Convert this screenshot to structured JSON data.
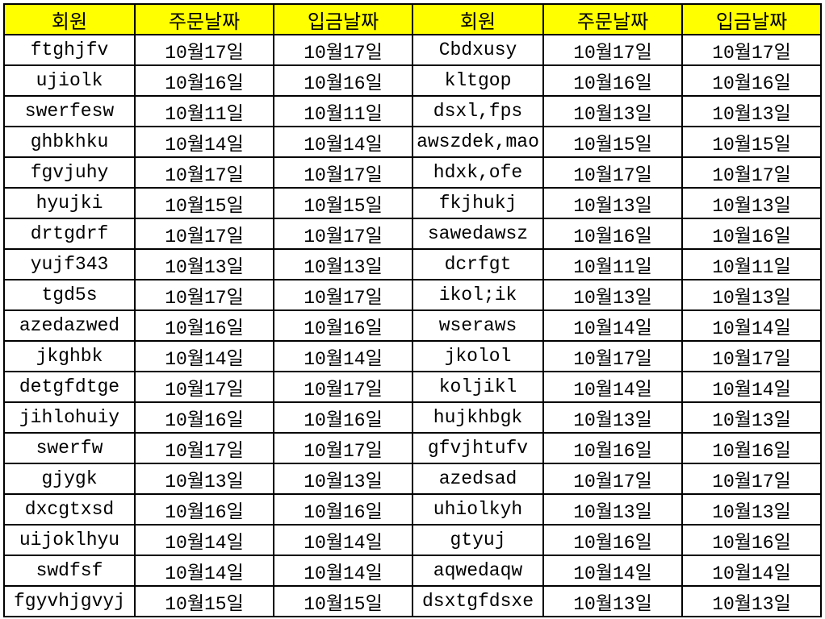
{
  "sheet": {
    "header_color": "#ffff00",
    "headers": [
      "회원",
      "주문날짜",
      "입금날짜",
      "회원",
      "주문날짜",
      "입금날짜"
    ],
    "rows": [
      [
        "ftghjfv",
        "10월17일",
        "10월17일",
        "Cbdxusy",
        "10월17일",
        "10월17일"
      ],
      [
        "ujiolk",
        "10월16일",
        "10월16일",
        "kltgop",
        "10월16일",
        "10월16일"
      ],
      [
        "swerfesw",
        "10월11일",
        "10월11일",
        "dsxl,fps",
        "10월13일",
        "10월13일"
      ],
      [
        "ghbkhku",
        "10월14일",
        "10월14일",
        "awszdek,mao",
        "10월15일",
        "10월15일"
      ],
      [
        "fgvjuhy",
        "10월17일",
        "10월17일",
        "hdxk,ofe",
        "10월17일",
        "10월17일"
      ],
      [
        "hyujki",
        "10월15일",
        "10월15일",
        "fkjhukj",
        "10월13일",
        "10월13일"
      ],
      [
        "drtgdrf",
        "10월17일",
        "10월17일",
        "sawedawsz",
        "10월16일",
        "10월16일"
      ],
      [
        "yujf343",
        "10월13일",
        "10월13일",
        "dcrfgt",
        "10월11일",
        "10월11일"
      ],
      [
        "tgd5s",
        "10월17일",
        "10월17일",
        "ikol;ik",
        "10월13일",
        "10월13일"
      ],
      [
        "azedazwed",
        "10월16일",
        "10월16일",
        "wseraws",
        "10월14일",
        "10월14일"
      ],
      [
        "jkghbk",
        "10월14일",
        "10월14일",
        "jkolol",
        "10월17일",
        "10월17일"
      ],
      [
        "detgfdtge",
        "10월17일",
        "10월17일",
        "koljikl",
        "10월14일",
        "10월14일"
      ],
      [
        "jihlohuiy",
        "10월16일",
        "10월16일",
        "hujkhbgk",
        "10월13일",
        "10월13일"
      ],
      [
        "swerfw",
        "10월17일",
        "10월17일",
        "gfvjhtufv",
        "10월16일",
        "10월16일"
      ],
      [
        "gjygk",
        "10월13일",
        "10월13일",
        "azedsad",
        "10월17일",
        "10월17일"
      ],
      [
        "dxcgtxsd",
        "10월16일",
        "10월16일",
        "uhiolkyh",
        "10월13일",
        "10월13일"
      ],
      [
        "uijoklhyu",
        "10월14일",
        "10월14일",
        "gtyuj",
        "10월16일",
        "10월16일"
      ],
      [
        "swdfsf",
        "10월14일",
        "10월14일",
        "aqwedaqw",
        "10월14일",
        "10월14일"
      ],
      [
        "fgyvhjgvyj",
        "10월15일",
        "10월15일",
        "dsxtgfdsxe",
        "10월13일",
        "10월13일"
      ]
    ]
  }
}
